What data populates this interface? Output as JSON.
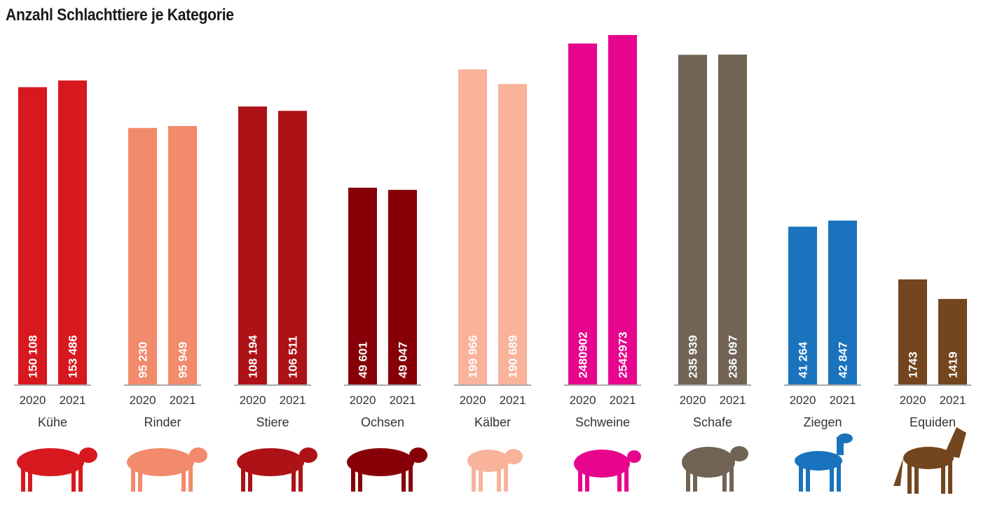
{
  "chart_data": {
    "type": "bar",
    "title": "Anzahl Schlachttiere je Kategorie",
    "xlabel": "",
    "ylabel": "",
    "grid": false,
    "note": "each category uses its own independent vertical scale",
    "years": [
      "2020",
      "2021"
    ],
    "categories": [
      {
        "name": "Kühe",
        "icon": "cow-icon",
        "color": "#d7191f",
        "values": [
          150108,
          153486
        ],
        "labels": [
          "150 108",
          "153 486"
        ],
        "ymax": 176800
      },
      {
        "name": "Rinder",
        "icon": "cattle-icon",
        "color": "#f28a6c",
        "values": [
          95230,
          95949
        ],
        "labels": [
          "95 230",
          "95 949"
        ],
        "ymax": 130000
      },
      {
        "name": "Stiere",
        "icon": "bull-icon",
        "color": "#ad1217",
        "values": [
          108194,
          106511
        ],
        "labels": [
          "108 194",
          "106 511"
        ],
        "ymax": 136300
      },
      {
        "name": "Ochsen",
        "icon": "ox-icon",
        "color": "#870007",
        "values": [
          49601,
          49047
        ],
        "labels": [
          "49 601",
          "49 047"
        ],
        "ymax": 88260
      },
      {
        "name": "Kälber",
        "icon": "calf-icon",
        "color": "#f8b39a",
        "values": [
          199966,
          190689
        ],
        "labels": [
          "199 966",
          "190 689"
        ],
        "ymax": 222200
      },
      {
        "name": "Schweine",
        "icon": "pig-icon",
        "color": "#e6058c",
        "values": [
          2480902,
          2542973
        ],
        "labels": [
          "2480902",
          "2542973"
        ],
        "ymax": 2548000
      },
      {
        "name": "Schafe",
        "icon": "sheep-icon",
        "color": "#716455",
        "values": [
          235939,
          236097
        ],
        "labels": [
          "235 939",
          "236 097"
        ],
        "ymax": 250600
      },
      {
        "name": "Ziegen",
        "icon": "goat-icon",
        "color": "#1a73bd",
        "values": [
          41264,
          42847
        ],
        "labels": [
          "41 264",
          "42 847"
        ],
        "ymax": 91550
      },
      {
        "name": "Equiden",
        "icon": "horse-icon",
        "color": "#73461f",
        "values": [
          1743,
          1419
        ],
        "labels": [
          "1743",
          "1419"
        ],
        "ymax": 5810
      }
    ]
  }
}
